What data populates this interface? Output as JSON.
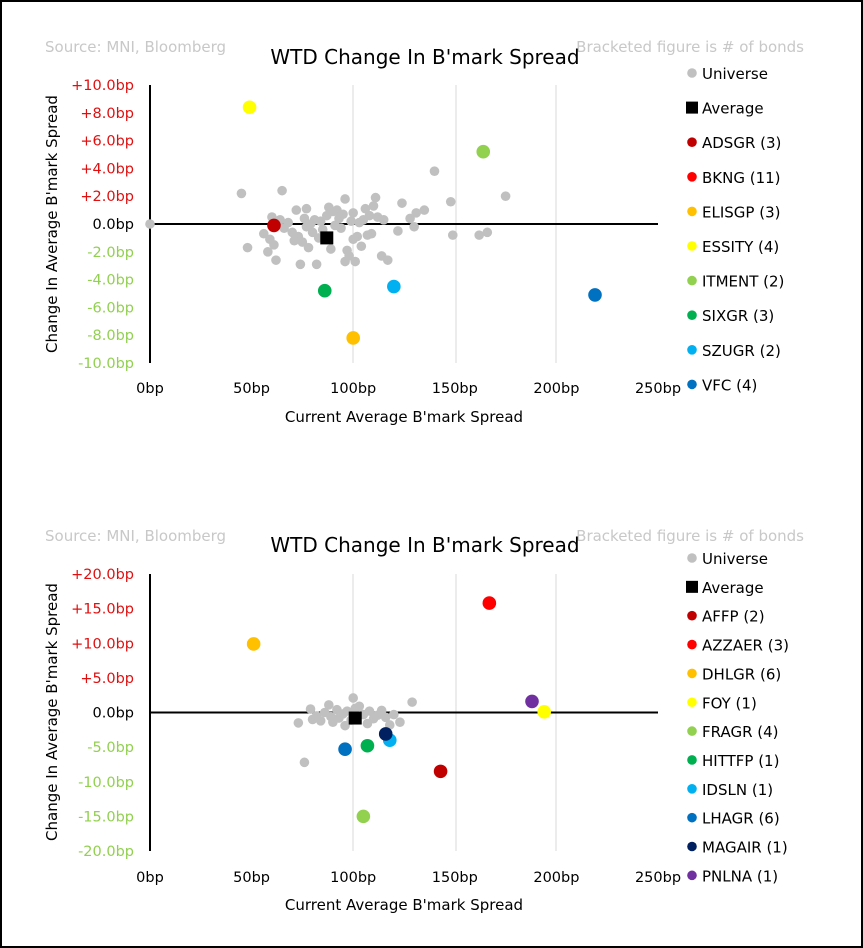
{
  "chart_data": [
    {
      "type": "scatter",
      "title": "WTD Change In B'mark Spread",
      "source": "Source: MNI, Bloomberg",
      "note": "Bracketed figure is # of bonds",
      "xlabel": "Current Average B'mark Spread",
      "ylabel": "Change In Average B'mark Spread",
      "xlim": [
        0,
        250
      ],
      "ylim": [
        -10,
        10
      ],
      "x_ticks": [
        "0bp",
        "50bp",
        "100bp",
        "150bp",
        "200bp",
        "250bp"
      ],
      "y_ticks": [
        "+10.0bp",
        "+8.0bp",
        "+6.0bp",
        "+4.0bp",
        "+2.0bp",
        "0.0bp",
        "-2.0bp",
        "-4.0bp",
        "-6.0bp",
        "-8.0bp",
        "-10.0bp"
      ],
      "colors": {
        "positive_tick": "#e01010",
        "zero_tick": "#000000",
        "negative_tick": "#92d050",
        "universe": "#c0c0c0",
        "average": "#000000"
      },
      "universe": [
        [
          0,
          0
        ],
        [
          45,
          2.2
        ],
        [
          48,
          -1.7
        ],
        [
          56,
          -0.7
        ],
        [
          58,
          -2.0
        ],
        [
          59,
          -1.1
        ],
        [
          60,
          0.5
        ],
        [
          61,
          -1.5
        ],
        [
          62,
          -2.6
        ],
        [
          64,
          0.3
        ],
        [
          65,
          2.4
        ],
        [
          66,
          -0.3
        ],
        [
          68,
          0.1
        ],
        [
          70,
          -0.6
        ],
        [
          71,
          -1.2
        ],
        [
          72,
          1.0
        ],
        [
          73,
          -0.9
        ],
        [
          74,
          -2.9
        ],
        [
          75,
          -1.3
        ],
        [
          76,
          0.4
        ],
        [
          77,
          1.1
        ],
        [
          77,
          -0.2
        ],
        [
          78,
          -1.7
        ],
        [
          79,
          0.0
        ],
        [
          80,
          -0.6
        ],
        [
          81,
          0.3
        ],
        [
          82,
          -2.9
        ],
        [
          83,
          -1.0
        ],
        [
          84,
          0.2
        ],
        [
          85,
          -0.4
        ],
        [
          86,
          -0.8
        ],
        [
          87,
          0.6
        ],
        [
          88,
          1.2
        ],
        [
          89,
          -1.8
        ],
        [
          90,
          0.9
        ],
        [
          91,
          -0.1
        ],
        [
          92,
          1.0
        ],
        [
          93,
          0.4
        ],
        [
          94,
          -0.3
        ],
        [
          95,
          0.7
        ],
        [
          96,
          1.8
        ],
        [
          96,
          -2.7
        ],
        [
          97,
          -1.9
        ],
        [
          98,
          -2.3
        ],
        [
          99,
          0.2
        ],
        [
          100,
          0.8
        ],
        [
          100,
          -1.1
        ],
        [
          101,
          -2.7
        ],
        [
          102,
          -0.9
        ],
        [
          103,
          0.1
        ],
        [
          104,
          -1.6
        ],
        [
          105,
          0.3
        ],
        [
          106,
          1.1
        ],
        [
          107,
          -0.8
        ],
        [
          108,
          0.6
        ],
        [
          109,
          -0.7
        ],
        [
          110,
          1.3
        ],
        [
          111,
          1.9
        ],
        [
          112,
          0.5
        ],
        [
          114,
          -2.3
        ],
        [
          115,
          0.3
        ],
        [
          117,
          -2.6
        ],
        [
          122,
          -0.5
        ],
        [
          124,
          1.5
        ],
        [
          128,
          0.4
        ],
        [
          130,
          -0.2
        ],
        [
          131,
          0.8
        ],
        [
          135,
          1.0
        ],
        [
          140,
          3.8
        ],
        [
          148,
          1.6
        ],
        [
          149,
          -0.8
        ],
        [
          162,
          -0.8
        ],
        [
          166,
          -0.6
        ],
        [
          175,
          2.0
        ]
      ],
      "average": {
        "name": "Average",
        "x": 87,
        "y": -1.0
      },
      "series": [
        {
          "name": "ADSGR",
          "count": "(3)",
          "x": 61,
          "y": -0.1,
          "color": "#c00000"
        },
        {
          "name": "BKNG",
          "count": "(11)",
          "x": null,
          "y": null,
          "color": "#ff0000"
        },
        {
          "name": "ELISGP",
          "count": "(3)",
          "x": 100,
          "y": -8.2,
          "color": "#ffc000"
        },
        {
          "name": "ESSITY",
          "count": "(4)",
          "x": 49,
          "y": 8.4,
          "color": "#ffff00"
        },
        {
          "name": "ITMENT",
          "count": "(2)",
          "x": 164,
          "y": 5.2,
          "color": "#92d050"
        },
        {
          "name": "SIXGR",
          "count": "(3)",
          "x": 86,
          "y": -4.8,
          "color": "#00b050"
        },
        {
          "name": "SZUGR",
          "count": "(2)",
          "x": 120,
          "y": -4.5,
          "color": "#00b0f0"
        },
        {
          "name": "VFC",
          "count": "(4)",
          "x": 219,
          "y": -5.1,
          "color": "#0070c0"
        }
      ]
    },
    {
      "type": "scatter",
      "title": "WTD Change In B'mark Spread",
      "source": "Source: MNI, Bloomberg",
      "note": "Bracketed figure is # of bonds",
      "xlabel": "Current Average B'mark Spread",
      "ylabel": "Change In Average B'mark Spread",
      "xlim": [
        0,
        250
      ],
      "ylim": [
        -20,
        20
      ],
      "x_ticks": [
        "0bp",
        "50bp",
        "100bp",
        "150bp",
        "200bp",
        "250bp"
      ],
      "y_ticks": [
        "+20.0bp",
        "+15.0bp",
        "+10.0bp",
        "+5.0bp",
        "0.0bp",
        "-5.0bp",
        "-10.0bp",
        "-15.0bp",
        "-20.0bp"
      ],
      "colors": {
        "positive_tick": "#e01010",
        "zero_tick": "#000000",
        "negative_tick": "#92d050",
        "universe": "#c0c0c0",
        "average": "#000000"
      },
      "universe": [
        [
          73,
          -1.5
        ],
        [
          76,
          -7.2
        ],
        [
          79,
          0.5
        ],
        [
          80,
          -1.0
        ],
        [
          82,
          -0.5
        ],
        [
          84,
          -1.2
        ],
        [
          86,
          0.0
        ],
        [
          88,
          1.1
        ],
        [
          89,
          -0.6
        ],
        [
          90,
          -1.4
        ],
        [
          92,
          0.4
        ],
        [
          93,
          -0.8
        ],
        [
          95,
          -0.2
        ],
        [
          96,
          -1.9
        ],
        [
          97,
          0.2
        ],
        [
          99,
          -1.1
        ],
        [
          100,
          2.1
        ],
        [
          101,
          0.6
        ],
        [
          102,
          -0.5
        ],
        [
          103,
          0.9
        ],
        [
          105,
          -0.3
        ],
        [
          107,
          -1.6
        ],
        [
          108,
          0.2
        ],
        [
          110,
          -0.9
        ],
        [
          112,
          -0.4
        ],
        [
          114,
          0.3
        ],
        [
          116,
          -0.7
        ],
        [
          118,
          -1.8
        ],
        [
          120,
          -0.3
        ],
        [
          123,
          -1.4
        ],
        [
          129,
          1.5
        ]
      ],
      "average": {
        "name": "Average",
        "x": 101,
        "y": -0.8
      },
      "series": [
        {
          "name": "AFFP",
          "count": "(2)",
          "x": 143,
          "y": -8.5,
          "color": "#c00000"
        },
        {
          "name": "AZZAER",
          "count": "(3)",
          "x": 167,
          "y": 15.8,
          "color": "#ff0000"
        },
        {
          "name": "DHLGR",
          "count": "(6)",
          "x": 51,
          "y": 9.9,
          "color": "#ffc000"
        },
        {
          "name": "FOY",
          "count": "(1)",
          "x": 194,
          "y": 0.1,
          "color": "#ffff00"
        },
        {
          "name": "FRAGR",
          "count": "(4)",
          "x": 105,
          "y": -15.0,
          "color": "#92d050"
        },
        {
          "name": "HITTFP",
          "count": "(1)",
          "x": 107,
          "y": -4.8,
          "color": "#00b050"
        },
        {
          "name": "IDSLN",
          "count": "(1)",
          "x": 118,
          "y": -4.0,
          "color": "#00b0f0"
        },
        {
          "name": "LHAGR",
          "count": "(6)",
          "x": 96,
          "y": -5.3,
          "color": "#0070c0"
        },
        {
          "name": "MAGAIR",
          "count": "(1)",
          "x": 116,
          "y": -3.1,
          "color": "#002060"
        },
        {
          "name": "PNLNA",
          "count": "(1)",
          "x": 188,
          "y": 1.6,
          "color": "#7030a0"
        }
      ]
    }
  ]
}
